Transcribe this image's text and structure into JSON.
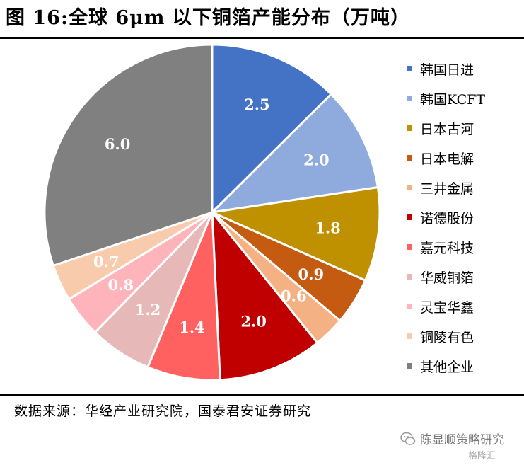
{
  "title": "图 16:全球 6μm 以下铜箔产能分布（万吨）",
  "source": "数据来源：华经产业研究院，国泰君安证券研究",
  "watermark": {
    "account": "陈显顺策略研究",
    "corner": "格隆汇"
  },
  "chart_data": {
    "type": "pie",
    "title": "图 16:全球 6μm 以下铜箔产能分布（万吨）",
    "unit": "万吨",
    "legend_position": "right",
    "categories": [
      "韩国日进",
      "韩国KCFT",
      "日本古河",
      "日本电解",
      "三井金属",
      "诺德股份",
      "嘉元科技",
      "华威铜箔",
      "灵宝华鑫",
      "铜陵有色",
      "其他企业"
    ],
    "values": [
      2.5,
      2.0,
      1.8,
      0.9,
      0.6,
      2.0,
      1.4,
      1.2,
      0.8,
      0.7,
      6.0
    ],
    "labels": [
      "2.5",
      "2.0",
      "1.8",
      "0.9",
      "0.6",
      "2.0",
      "1.4",
      "1.2",
      "0.8",
      "0.7",
      "6.0"
    ],
    "colors": [
      "#4472C4",
      "#8FAADC",
      "#BF9000",
      "#C55A11",
      "#F4B183",
      "#C00000",
      "#FF6161",
      "#E6B8B7",
      "#FFB3BA",
      "#F8CBAD",
      "#808080"
    ],
    "label_colors": [
      "#ffffff",
      "#ffffff",
      "#ffffff",
      "#ffffff",
      "#ffffff",
      "#ffffff",
      "#ffffff",
      "#ffffff",
      "#ffffff",
      "#ffffff",
      "#ffffff"
    ]
  }
}
